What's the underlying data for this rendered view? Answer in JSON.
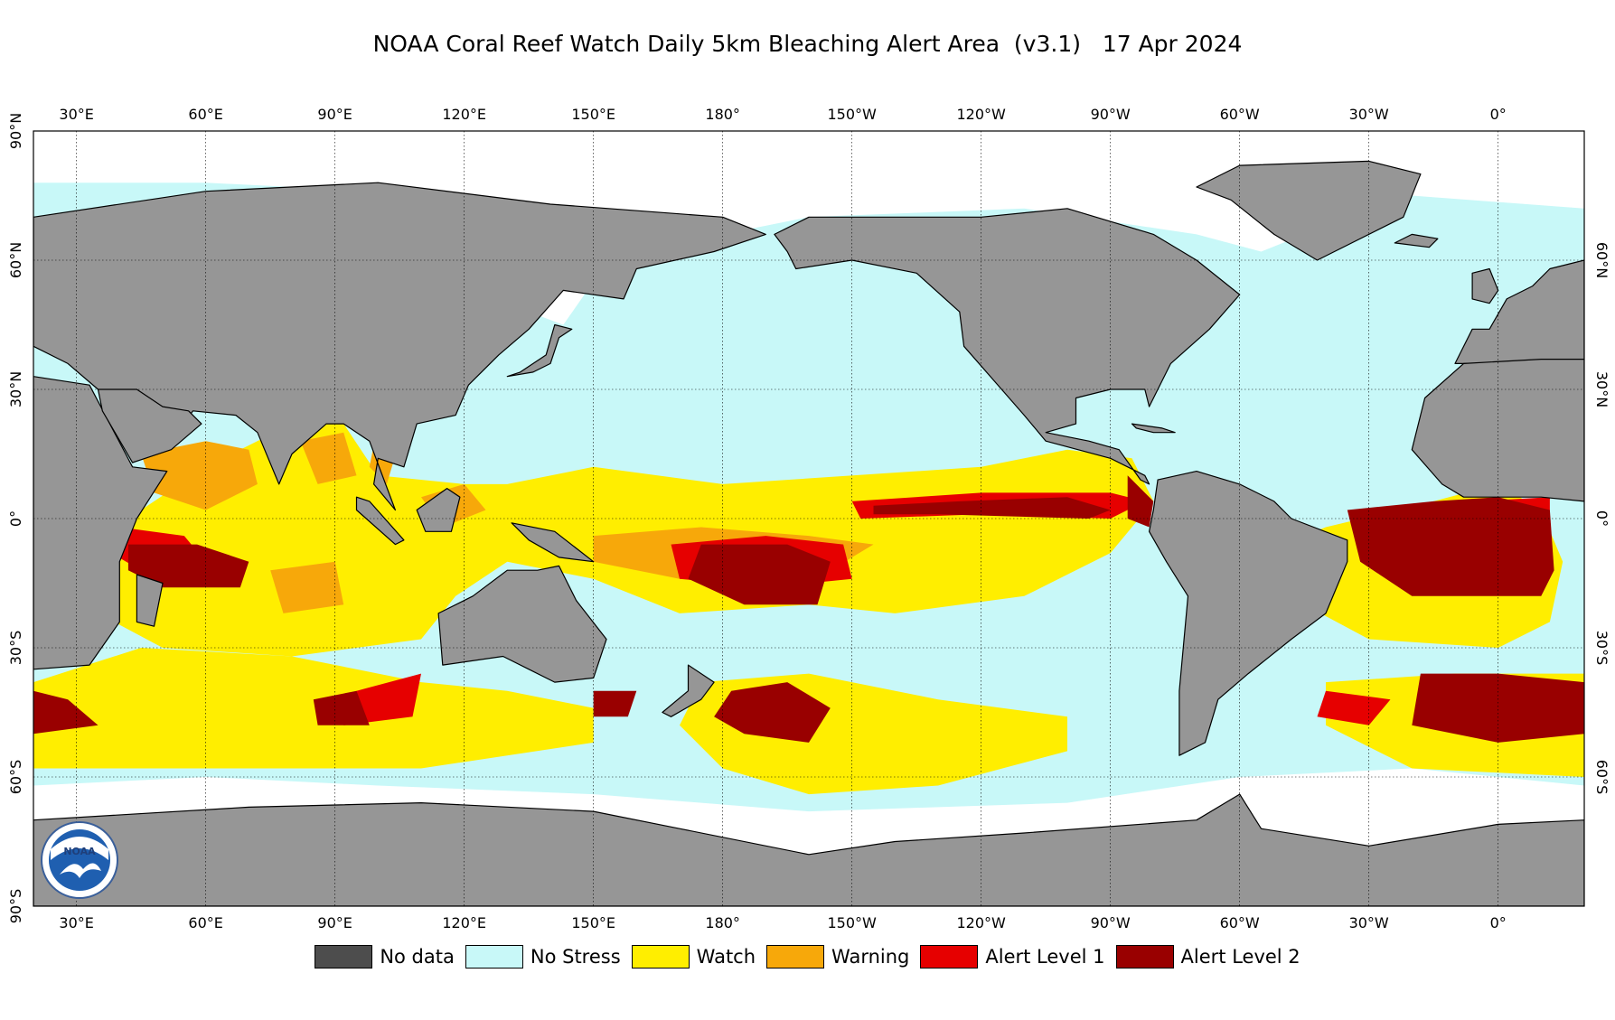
{
  "title": "NOAA Coral Reef Watch Daily 5km Bleaching Alert Area  (v3.1)   17 Apr 2024",
  "map": {
    "projection": "equirectangular",
    "central_meridian": 200,
    "lon_range": [
      20,
      380
    ],
    "lat_range": [
      -90,
      90
    ],
    "grid": true,
    "lon_tick_labels": [
      "30°E",
      "60°E",
      "90°E",
      "120°E",
      "150°E",
      "180°",
      "150°W",
      "120°W",
      "90°W",
      "60°W",
      "30°W",
      "0°"
    ],
    "left_lat_labels": [
      "90°N",
      "60°N",
      "30°N",
      "0°",
      "30°S",
      "60°S",
      "90°S"
    ],
    "right_lat_labels": [
      "60°N",
      "30°N",
      "0°",
      "30°S",
      "60°S"
    ]
  },
  "colors": {
    "land": "#969696",
    "no_data": "#4d4d4d",
    "no_stress": "#c8f8f8",
    "watch": "#ffee00",
    "warning": "#f7a80a",
    "alert1": "#e60000",
    "alert2": "#990000",
    "ice": "#ffffff"
  },
  "legend": [
    {
      "label": "No data",
      "color": "#4d4d4d"
    },
    {
      "label": "No Stress",
      "color": "#c8f8f8"
    },
    {
      "label": "Watch",
      "color": "#ffee00"
    },
    {
      "label": "Warning",
      "color": "#f7a80a"
    },
    {
      "label": "Alert Level 1",
      "color": "#e60000"
    },
    {
      "label": "Alert Level 2",
      "color": "#990000"
    }
  ],
  "logo": {
    "text": "NOAA"
  }
}
